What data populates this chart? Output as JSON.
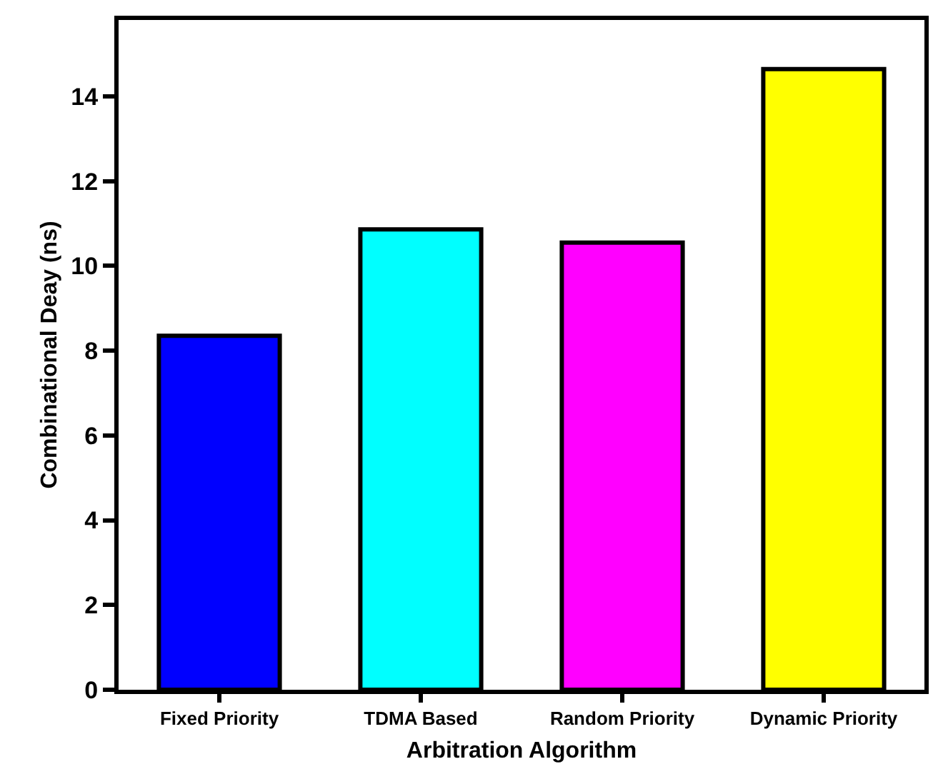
{
  "chart_data": {
    "type": "bar",
    "xlabel": "Arbitration Algorithm",
    "ylabel": "Combinational Deay (ns)",
    "categories": [
      "Fixed Priority",
      "TDMA Based",
      "Random Priority",
      "Dynamic Priority"
    ],
    "values": [
      8.35,
      10.86,
      10.55,
      14.64
    ],
    "colors": [
      "#0000ff",
      "#00ffff",
      "#ff00ff",
      "#ffff00"
    ],
    "ylim": [
      0,
      15.8
    ],
    "yticks": [
      0,
      2,
      4,
      6,
      8,
      10,
      12,
      14
    ]
  }
}
